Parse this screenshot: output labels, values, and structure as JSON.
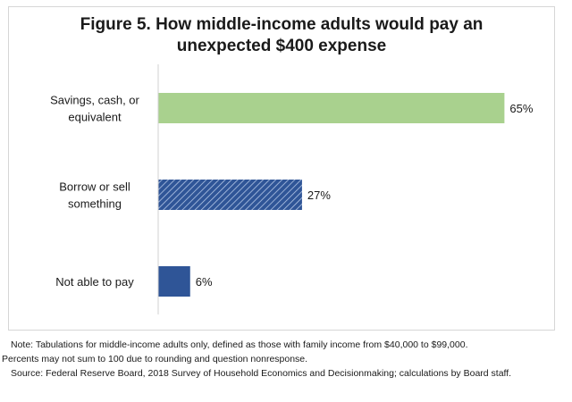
{
  "chart_data": {
    "type": "bar",
    "orientation": "horizontal",
    "title_lines": [
      "Figure 5.  How middle-income adults would pay an",
      "unexpected $400 expense"
    ],
    "categories": [
      [
        "Savings, cash, or",
        "equivalent"
      ],
      [
        "Borrow or sell",
        "something"
      ],
      [
        "Not able to pay"
      ]
    ],
    "values": [
      65,
      27,
      6
    ],
    "value_labels": [
      "65%",
      "27%",
      "6%"
    ],
    "colors": [
      "#a9d18e",
      "#2f5597",
      "#2f5597"
    ],
    "fills": [
      "solid",
      "hatched",
      "solid"
    ],
    "xlim": [
      0,
      100
    ],
    "grid": false,
    "legend": "none"
  },
  "notes": {
    "line1": "Note:  Tabulations for middle-income adults only, defined as those with family income from $40,000 to $99,000.",
    "line2": "Percents may not sum to 100 due to rounding and question nonresponse.",
    "line3": "Source:  Federal Reserve Board, 2018 Survey of Household Economics and Decisionmaking; calculations by Board staff."
  }
}
